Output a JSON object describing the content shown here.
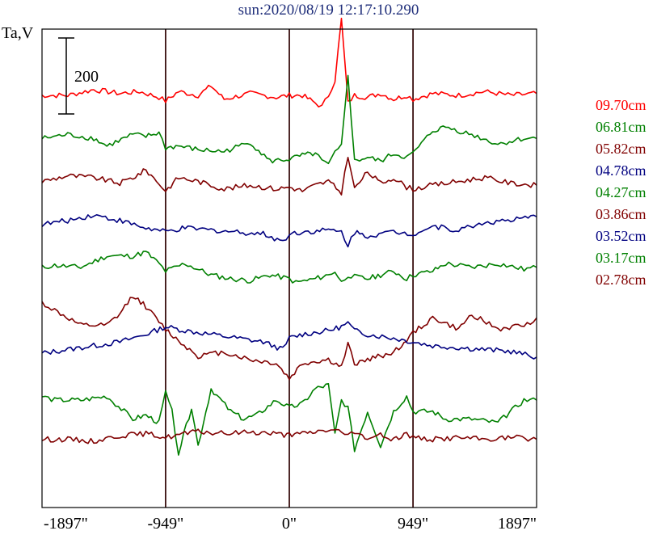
{
  "chart_data": {
    "type": "line",
    "title": "sun:2020/08/19 12:17:10.290",
    "ylabel": "Ta,V",
    "scale_bar_label": "200",
    "scale_bar_value": 200,
    "xlim": [
      -1897,
      1897
    ],
    "x_ticks": [
      -1897,
      -949,
      0,
      949,
      1897
    ],
    "x_tick_labels": [
      "-1897\"",
      "-949\"",
      "0\"",
      "949\"",
      "1897\""
    ],
    "grid_vertical_at": [
      -949,
      0,
      949
    ],
    "legend_position": "right",
    "series": [
      {
        "name": "09.70cm",
        "color": "#ff0000",
        "x": [
          -1897,
          -1700,
          -1500,
          -1300,
          -1150,
          -1000,
          -949,
          -850,
          -700,
          -600,
          -500,
          -300,
          -100,
          0,
          100,
          200,
          250,
          300,
          350,
          400,
          450,
          500,
          600,
          700,
          800,
          900,
          949,
          1100,
          1300,
          1500,
          1700,
          1897
        ],
        "y": [
          0,
          0,
          15,
          5,
          10,
          -5,
          -15,
          10,
          0,
          25,
          -10,
          5,
          -5,
          0,
          0,
          -20,
          -30,
          0,
          40,
          200,
          -20,
          0,
          -5,
          5,
          -10,
          0,
          -10,
          5,
          0,
          10,
          0,
          5
        ]
      },
      {
        "name": "06.81cm",
        "color": "#008000",
        "x": [
          -1897,
          -1700,
          -1500,
          -1400,
          -1200,
          -1100,
          -1000,
          -949,
          -850,
          -700,
          -500,
          -300,
          -150,
          0,
          100,
          200,
          250,
          300,
          350,
          400,
          450,
          500,
          600,
          700,
          800,
          900,
          949,
          1100,
          1200,
          1400,
          1600,
          1800,
          1897
        ],
        "y": [
          0,
          10,
          0,
          -20,
          10,
          5,
          15,
          -25,
          -20,
          -30,
          -35,
          -10,
          -60,
          -55,
          -45,
          -40,
          -60,
          -70,
          -40,
          -20,
          170,
          -60,
          -50,
          -60,
          -40,
          -50,
          -40,
          20,
          30,
          10,
          -15,
          0,
          0
        ]
      },
      {
        "name": "05.82cm",
        "color": "#800000",
        "x": [
          -1897,
          -1700,
          -1500,
          -1300,
          -1200,
          -1100,
          -1000,
          -949,
          -850,
          -700,
          -600,
          -500,
          -300,
          -100,
          0,
          100,
          200,
          300,
          400,
          450,
          500,
          600,
          700,
          800,
          900,
          949,
          1100,
          1300,
          1500,
          1700,
          1897
        ],
        "y": [
          0,
          15,
          10,
          -5,
          10,
          30,
          -5,
          -25,
          10,
          0,
          -10,
          -20,
          -10,
          -20,
          -15,
          -25,
          -10,
          0,
          -30,
          70,
          -20,
          25,
          -5,
          10,
          -15,
          -20,
          -10,
          0,
          10,
          -5,
          -10
        ]
      },
      {
        "name": "04.78cm",
        "color": "#000080",
        "x": [
          -1897,
          -1700,
          -1500,
          -1300,
          -1100,
          -949,
          -800,
          -600,
          -400,
          -200,
          -50,
          0,
          100,
          300,
          400,
          450,
          500,
          600,
          800,
          949,
          1100,
          1300,
          1500,
          1700,
          1897
        ],
        "y": [
          0,
          10,
          25,
          10,
          -10,
          -20,
          -10,
          -15,
          -20,
          -25,
          -45,
          -25,
          -20,
          -15,
          -20,
          -55,
          -20,
          -30,
          -20,
          -25,
          -5,
          -15,
          5,
          10,
          20
        ]
      },
      {
        "name": "04.27cm",
        "color": "#008000",
        "x": [
          -1897,
          -1800,
          -1600,
          -1400,
          -1200,
          -1100,
          -1000,
          -949,
          -800,
          -600,
          -450,
          -300,
          -150,
          0,
          50,
          200,
          300,
          350,
          400,
          450,
          500,
          600,
          700,
          800,
          900,
          949,
          1100,
          1200,
          1400,
          1600,
          1800,
          1897
        ],
        "y": [
          0,
          5,
          0,
          30,
          30,
          40,
          10,
          -10,
          10,
          -20,
          -30,
          -35,
          -20,
          -30,
          -40,
          -30,
          -20,
          -10,
          -40,
          -20,
          -25,
          -30,
          -20,
          -10,
          -30,
          -20,
          -10,
          10,
          0,
          10,
          -5,
          0
        ]
      },
      {
        "name": "03.86cm",
        "color": "#800000",
        "x": [
          -1897,
          -1800,
          -1600,
          -1400,
          -1300,
          -1200,
          -1100,
          -1000,
          -949,
          -850,
          -700,
          -500,
          -300,
          -100,
          0,
          100,
          300,
          400,
          450,
          500,
          600,
          700,
          800,
          900,
          949,
          1100,
          1300,
          1400,
          1600,
          1800,
          1897
        ],
        "y": [
          20,
          0,
          -40,
          -40,
          -10,
          40,
          10,
          -30,
          -50,
          -80,
          -120,
          -110,
          -130,
          -140,
          -180,
          -140,
          -130,
          -150,
          -90,
          -140,
          -130,
          -120,
          -110,
          -80,
          -60,
          -20,
          -50,
          -10,
          -50,
          -40,
          -20
        ]
      },
      {
        "name": "03.52cm",
        "color": "#000080",
        "x": [
          -1897,
          -1700,
          -1500,
          -1300,
          -1100,
          -949,
          -800,
          -600,
          -400,
          -200,
          -50,
          0,
          100,
          300,
          400,
          450,
          500,
          600,
          800,
          949,
          1100,
          1300,
          1500,
          1700,
          1897
        ],
        "y": [
          0,
          10,
          20,
          30,
          50,
          70,
          60,
          50,
          40,
          30,
          10,
          40,
          50,
          60,
          70,
          80,
          60,
          50,
          40,
          30,
          20,
          15,
          10,
          5,
          -10
        ]
      },
      {
        "name": "03.17cm",
        "color": "#008000",
        "x": [
          -1897,
          -1800,
          -1600,
          -1400,
          -1200,
          -1100,
          -1000,
          -949,
          -900,
          -850,
          -750,
          -700,
          -600,
          -450,
          -350,
          -250,
          -100,
          0,
          100,
          200,
          300,
          350,
          400,
          450,
          500,
          600,
          700,
          800,
          900,
          949,
          1100,
          1200,
          1400,
          1600,
          1800,
          1897
        ],
        "y": [
          0,
          -10,
          -10,
          0,
          -60,
          -50,
          -70,
          10,
          -40,
          -150,
          -30,
          -130,
          20,
          -40,
          -60,
          -50,
          -10,
          -30,
          -20,
          20,
          30,
          -100,
          -10,
          -30,
          -140,
          -40,
          -130,
          -40,
          0,
          -40,
          -40,
          -60,
          -60,
          -70,
          -10,
          -10
        ]
      },
      {
        "name": "02.78cm",
        "color": "#800000",
        "x": [
          -1897,
          -1700,
          -1500,
          -1300,
          -1100,
          -949,
          -800,
          -700,
          -500,
          -300,
          -100,
          0,
          100,
          200,
          300,
          400,
          450,
          500,
          600,
          700,
          800,
          900,
          949,
          1100,
          1300,
          1500,
          1700,
          1897
        ],
        "y": [
          0,
          0,
          -5,
          10,
          15,
          5,
          15,
          20,
          15,
          20,
          15,
          10,
          15,
          20,
          25,
          20,
          10,
          15,
          5,
          10,
          0,
          15,
          5,
          0,
          5,
          0,
          5,
          0
        ]
      }
    ]
  }
}
